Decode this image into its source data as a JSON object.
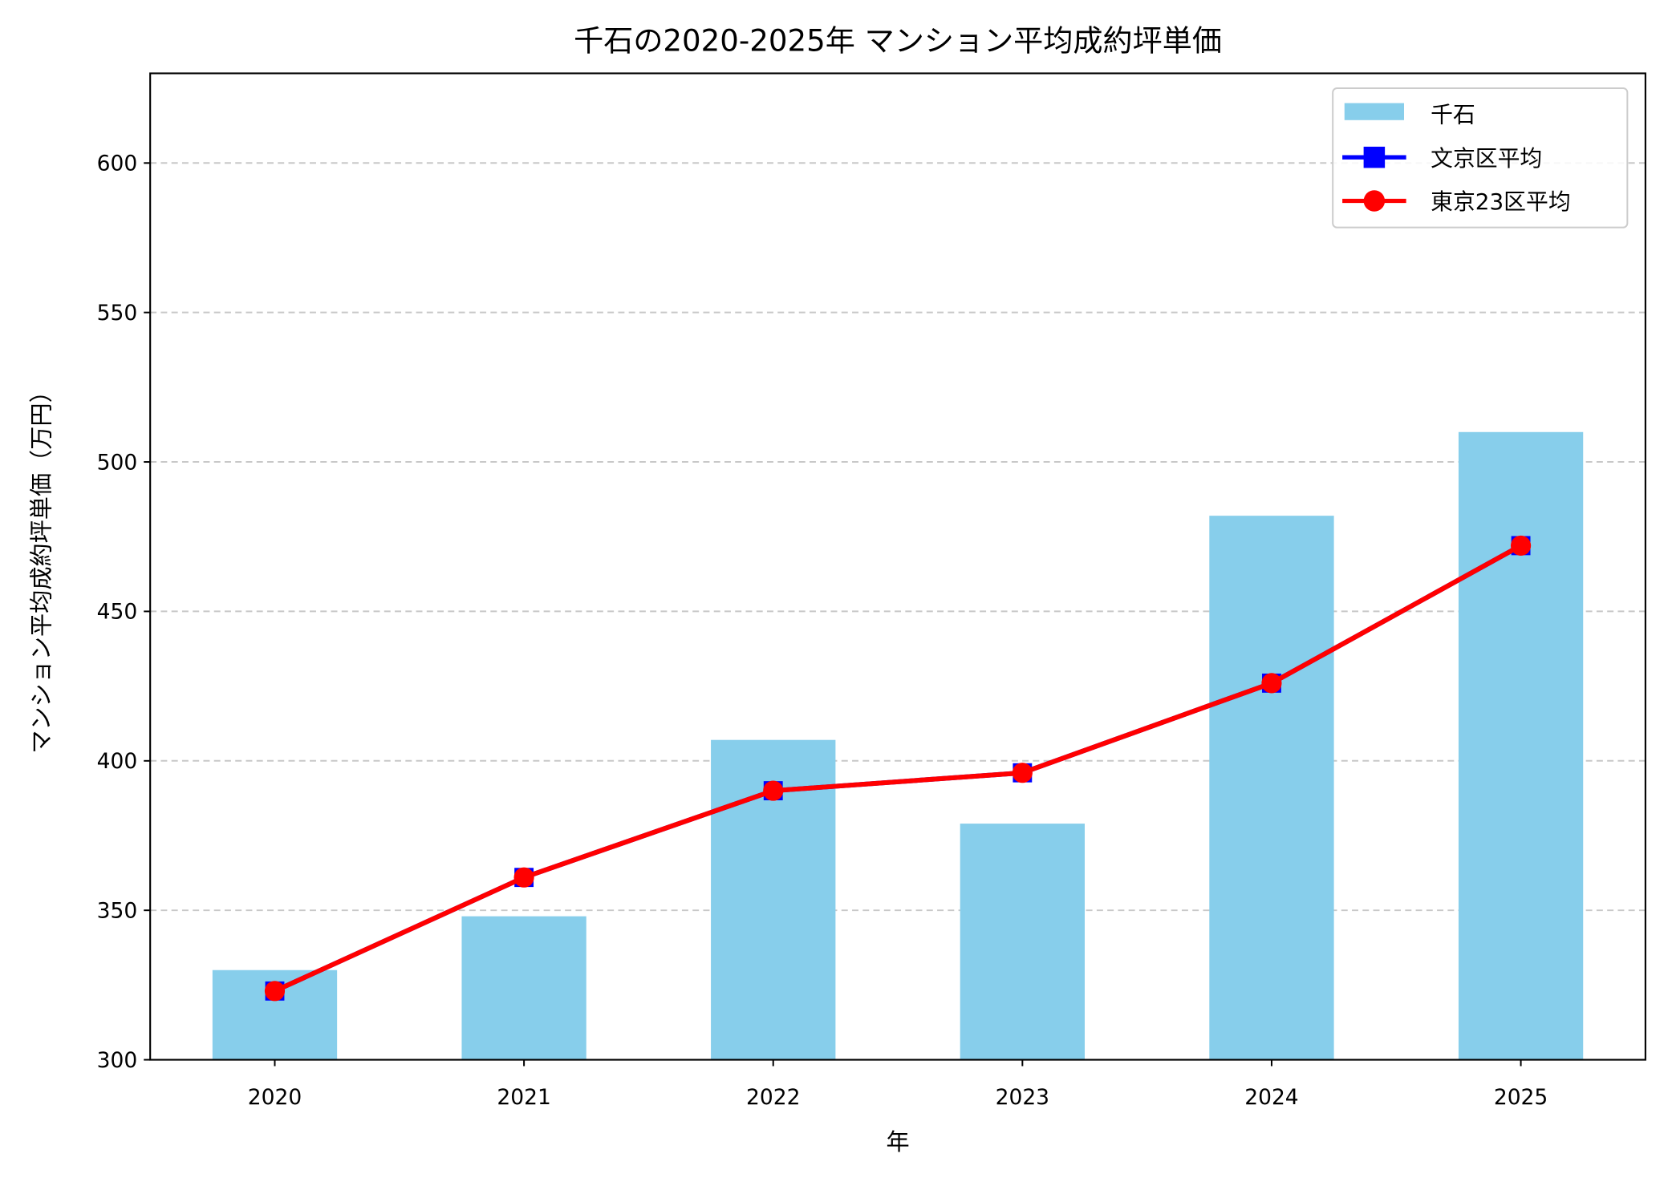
{
  "chart_data": {
    "type": "bar",
    "title": "千石の2020-2025年 マンション平均成約坪単価",
    "xlabel": "年",
    "ylabel": "マンション平均成約坪単価（万円）",
    "categories": [
      "2020",
      "2021",
      "2022",
      "2023",
      "2024",
      "2025"
    ],
    "ylim": [
      300,
      630
    ],
    "yticks": [
      300,
      350,
      400,
      450,
      500,
      550,
      600
    ],
    "grid": "y dashed",
    "legend_placement": "top-right",
    "series": [
      {
        "name": "千石",
        "kind": "bar",
        "color": "#87CEEB",
        "values": [
          330,
          348,
          407,
          379,
          482,
          510
        ]
      },
      {
        "name": "文京区平均",
        "kind": "line",
        "marker": "square",
        "color": "#0000FF",
        "values": [
          323,
          361,
          390,
          396,
          426,
          472
        ]
      },
      {
        "name": "東京23区平均",
        "kind": "line",
        "marker": "circle",
        "color": "#FF0000",
        "values": [
          323,
          361,
          390,
          396,
          426,
          472
        ]
      }
    ]
  }
}
